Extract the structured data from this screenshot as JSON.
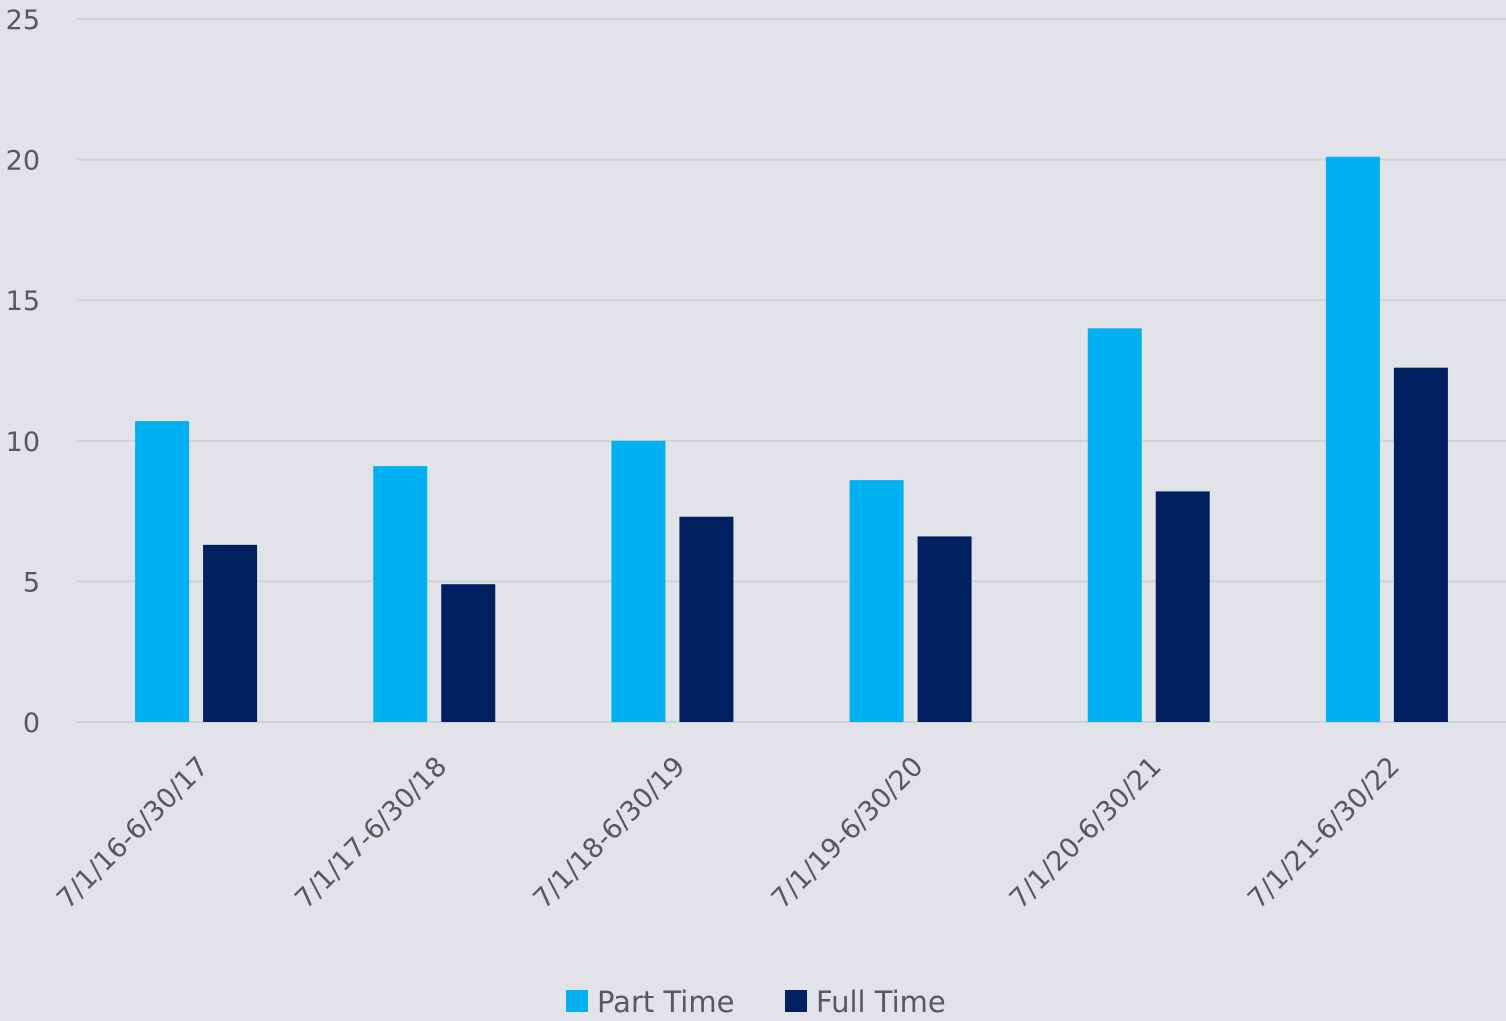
{
  "chart_data": {
    "type": "bar",
    "categories": [
      "7/1/16-6/30/17",
      "7/1/17-6/30/18",
      "7/1/18-6/30/19",
      "7/1/19-6/30/20",
      "7/1/20-6/30/21",
      "7/1/21-6/30/22"
    ],
    "series": [
      {
        "name": "Part Time",
        "color": "#00b0f0",
        "values": [
          10.7,
          9.1,
          10.0,
          8.6,
          14.0,
          20.1
        ]
      },
      {
        "name": "Full Time",
        "color": "#002060",
        "values": [
          6.3,
          4.9,
          7.3,
          6.6,
          8.2,
          12.6
        ]
      }
    ],
    "yticks": [
      "0",
      "5",
      "10",
      "15",
      "20",
      "25"
    ],
    "ylim": [
      0,
      25
    ],
    "grid": true,
    "legend_position": "bottom",
    "background": "#e2e3e8",
    "gridline_color": "#d0d2d9"
  }
}
